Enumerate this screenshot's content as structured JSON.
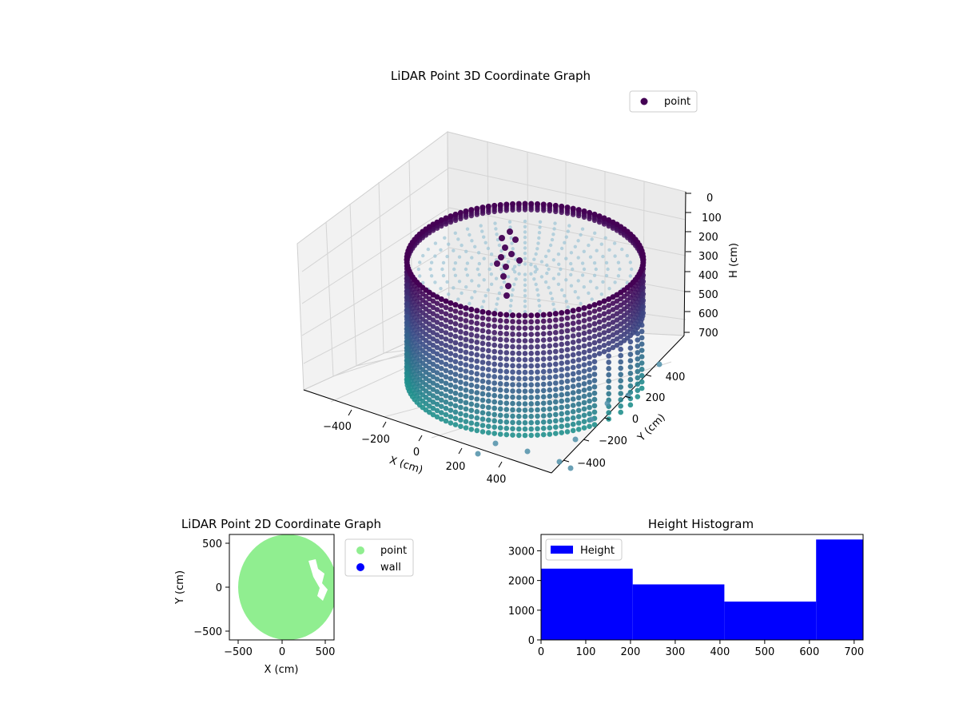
{
  "colors": {
    "viridis_top": "#440154",
    "viridis_mid": "#3b528b",
    "viridis_low": "#21908d",
    "point_2d": "#90ee90",
    "wall_2d": "#0000ff",
    "hist_bar": "#0000ff",
    "pane": "#f2f2f2",
    "grid": "#d0d0d0"
  },
  "chart_data": [
    {
      "type": "scatter",
      "projection": "3d",
      "title": "LiDAR Point 3D Coordinate Graph",
      "xlabel": "X (cm)",
      "ylabel": "Y (cm)",
      "zlabel": "H (cm)",
      "x_ticks": [
        "−400",
        "−200",
        "0",
        "200",
        "400"
      ],
      "y_ticks": [
        "−400",
        "−200",
        "0",
        "200",
        "400"
      ],
      "z_ticks": [
        "0",
        "100",
        "200",
        "300",
        "400",
        "500",
        "600",
        "700"
      ],
      "z_inverted": true,
      "legend": [
        {
          "label": "point",
          "color": "#440154"
        }
      ],
      "legend_position": "top-right",
      "grid": true,
      "description_shape": "cylindrical wall of radius ~500 cm, heights 0-700 cm, colormap viridis by height"
    },
    {
      "type": "scatter",
      "title": "LiDAR Point 2D Coordinate Graph",
      "xlabel": "X (cm)",
      "ylabel": "Y (cm)",
      "x_ticks": [
        "−500",
        "0",
        "500"
      ],
      "y_ticks": [
        "−500",
        "0",
        "500"
      ],
      "xlim": [
        -620,
        600
      ],
      "ylim": [
        -620,
        600
      ],
      "series": [
        {
          "name": "point",
          "color": "#90ee90"
        },
        {
          "name": "wall",
          "color": "#0000ff"
        }
      ],
      "legend_position": "outside-right"
    },
    {
      "type": "bar",
      "title": "Height Histogram",
      "bin_edges": [
        0,
        205,
        410,
        615,
        720
      ],
      "values": [
        2400,
        1870,
        1290,
        3380
      ],
      "xlim": [
        0,
        720
      ],
      "ylim": [
        0,
        3550
      ],
      "x_ticks": [
        "0",
        "100",
        "200",
        "300",
        "400",
        "500",
        "600",
        "700"
      ],
      "y_ticks": [
        "0",
        "1000",
        "2000",
        "3000"
      ],
      "series": [
        {
          "name": "Height",
          "color": "#0000ff"
        }
      ],
      "legend_position": "top-left"
    }
  ]
}
